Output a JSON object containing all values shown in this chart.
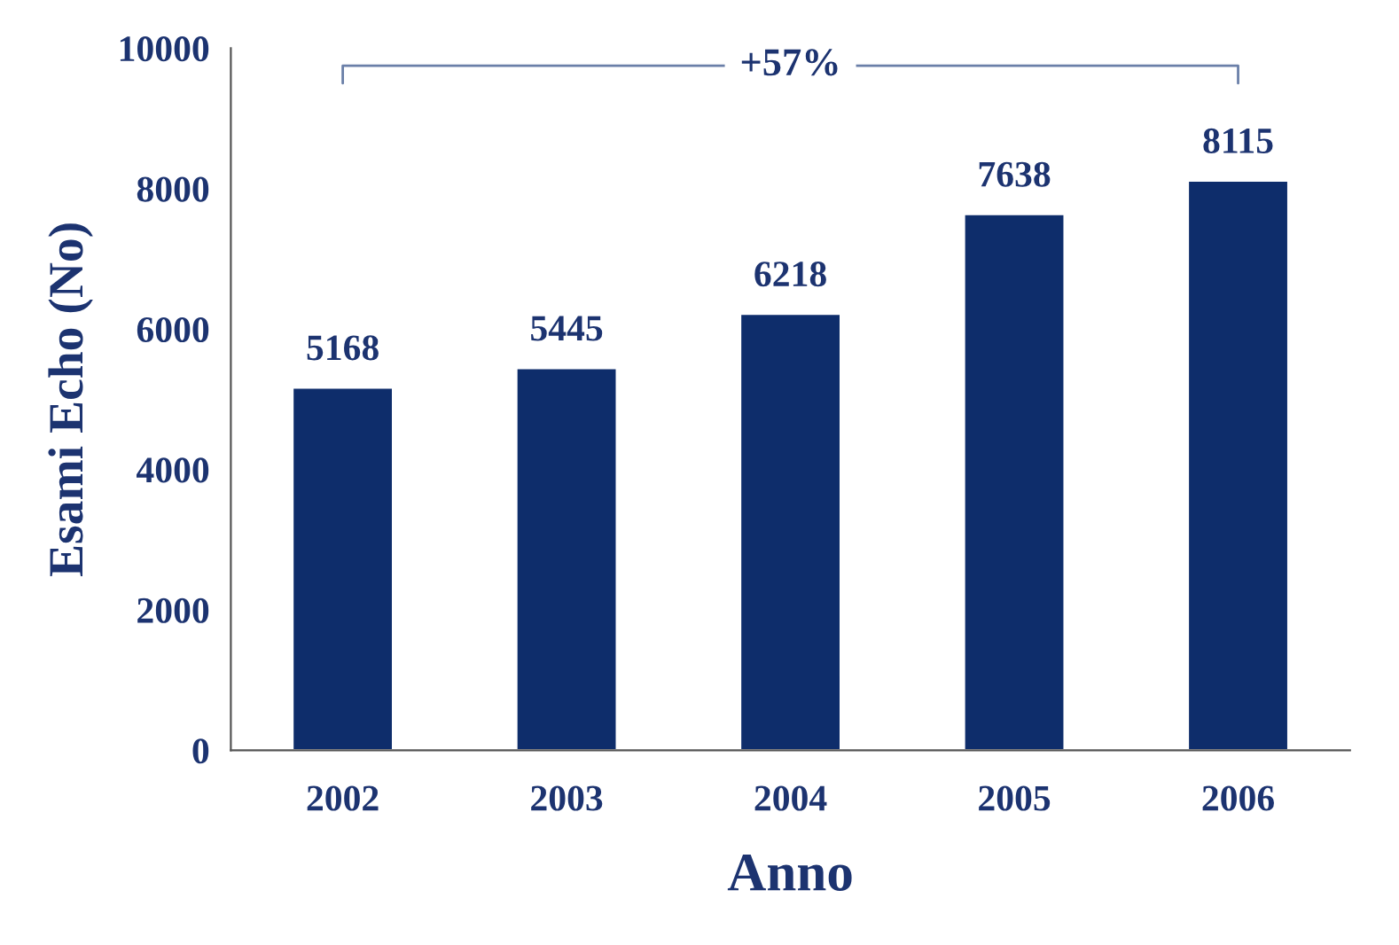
{
  "chart_data": {
    "type": "bar",
    "categories": [
      "2002",
      "2003",
      "2004",
      "2005",
      "2006"
    ],
    "values": [
      5168,
      5445,
      6218,
      7638,
      8115
    ],
    "color": "#0e2d6b",
    "xlabel": "Anno",
    "ylabel": "Esami Echo (No)",
    "ylim": [
      0,
      10000
    ],
    "yticks": [
      0,
      2000,
      4000,
      6000,
      8000,
      10000
    ],
    "data_labels": true,
    "grid": false,
    "legend": false,
    "annotations": [
      "+57%"
    ]
  }
}
